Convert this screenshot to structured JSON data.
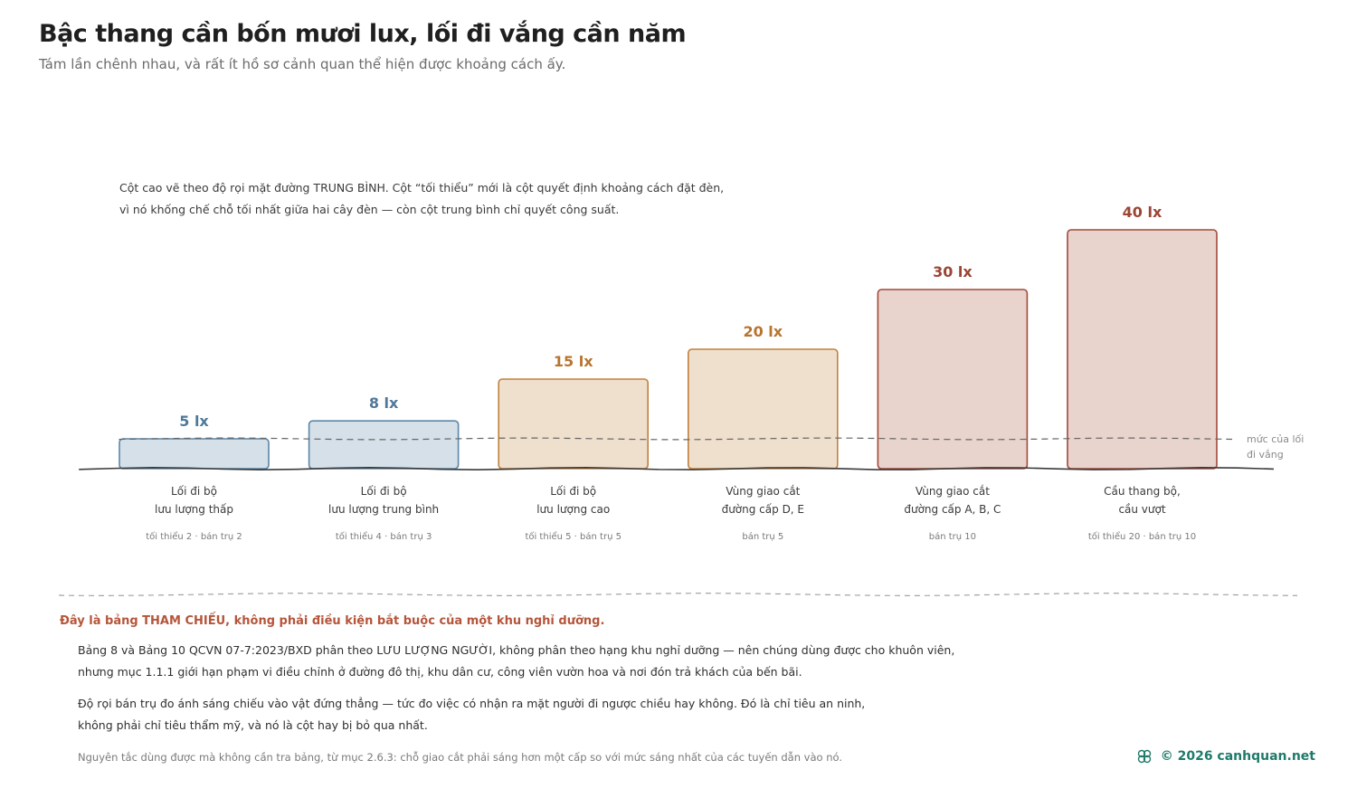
{
  "header": {
    "title": "Bậc thang cần bốn mươi lux, lối đi vắng cần năm",
    "subtitle": "Tám lần chênh nhau, và rất ít hồ sơ cảnh quan thể hiện được khoảng cách ấy."
  },
  "note": {
    "line1": "Cột cao vẽ theo độ rọi mặt đường TRUNG BÌNH. Cột “tối thiểu” mới là cột quyết định khoảng cách đặt đèn,",
    "line2": "vì nó khống chế chỗ tối nhất giữa hai cây đèn — còn cột trung bình chỉ quyết công suất."
  },
  "chart_data": {
    "type": "bar",
    "categories": [
      [
        "Lối đi bộ",
        "lưu lượng thấp"
      ],
      [
        "Lối đi bộ",
        "lưu lượng trung bình"
      ],
      [
        "Lối đi bộ",
        "lưu lượng cao"
      ],
      [
        "Vùng giao cắt",
        "đường cấp D, E"
      ],
      [
        "Vùng giao cắt",
        "đường cấp A, B, C"
      ],
      [
        "Cầu thang bộ,",
        "cầu vượt"
      ]
    ],
    "values": [
      5,
      8,
      15,
      20,
      30,
      40
    ],
    "value_labels": [
      "5 lx",
      "8 lx",
      "15 lx",
      "20 lx",
      "30 lx",
      "40 lx"
    ],
    "meta": [
      "tối thiểu 2 · bán trụ 2",
      "tối thiểu 4 · bán trụ 3",
      "tối thiểu 5 · bán trụ 5",
      "bán trụ 5",
      "bán trụ 10",
      "tối thiểu 20 · bán trụ 10"
    ],
    "reference_line": {
      "value": 5,
      "label": [
        "mức của lối",
        "đi vắng"
      ]
    },
    "ylim": [
      0,
      40
    ],
    "grid": false,
    "colors": {
      "blue_fill": "#d5e0e9",
      "blue_stroke": "#5b86a7",
      "blue_text": "#4f7899",
      "orange_fill": "#efdfcd",
      "orange_stroke": "#c0813e",
      "orange_text": "#b8742f",
      "red_fill": "#e8d4cc",
      "red_stroke": "#a2483a",
      "red_text": "#9b4535"
    }
  },
  "footer": {
    "heading": "Đây là bảng THAM CHIẾU, không phải điều kiện bắt buộc của một khu nghỉ dưỡng.",
    "p1_line1": "Bảng 8 và Bảng 10 QCVN 07-7:2023/BXD phân theo LƯU LƯỢNG NGƯỜI, không phân theo hạng khu nghỉ dưỡng — nên chúng dùng được cho khuôn viên,",
    "p1_line2": "nhưng mục 1.1.1 giới hạn phạm vi điều chỉnh ở đường đô thị, khu dân cư, công viên vườn hoa và nơi đón trả khách của bến bãi.",
    "p2_line1": "Độ rọi bán trụ đo ánh sáng chiếu vào vật đứng thẳng — tức đo việc có nhận ra mặt người đi ngược chiều hay không. Đó là chỉ tiêu an ninh,",
    "p2_line2": "không phải chỉ tiêu thẩm mỹ, và nó là cột hay bị bỏ qua nhất.",
    "rule_note": "Nguyên tắc dùng được mà không cần tra bảng, từ mục 2.6.3: chỗ giao cắt phải sáng hơn một cấp so với mức sáng nhất của các tuyến dẫn vào nó."
  },
  "brand": {
    "text": "© 2026 canhquan.net",
    "logo_icon": "knot-logo-icon"
  }
}
